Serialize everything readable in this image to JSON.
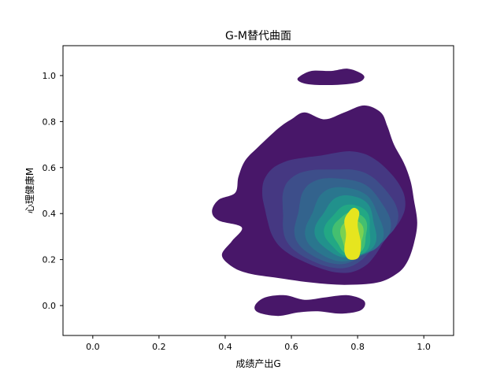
{
  "chart_data": {
    "type": "kde_contour",
    "title": "G-M替代曲面",
    "xlabel": "成绩产出G",
    "ylabel": "心理健康M",
    "xlim": [
      -0.09,
      1.09
    ],
    "ylim": [
      -0.13,
      1.13
    ],
    "xticks": [
      0.0,
      0.2,
      0.4,
      0.6,
      0.8,
      1.0
    ],
    "xtick_labels": [
      "0.0",
      "0.2",
      "0.4",
      "0.6",
      "0.8",
      "1.0"
    ],
    "yticks": [
      0.0,
      0.2,
      0.4,
      0.6,
      0.8,
      1.0
    ],
    "ytick_labels": [
      "0.0",
      "0.2",
      "0.4",
      "0.6",
      "0.8",
      "1.0"
    ],
    "grid": false,
    "colormap": "viridis",
    "level_colors": [
      "#481769",
      "#453882",
      "#3d4e8a",
      "#33638d",
      "#2a768e",
      "#21918c",
      "#22a884",
      "#44bf70",
      "#7ad151",
      "#e6e51f"
    ],
    "density_peak": {
      "x": 0.785,
      "y": 0.3
    },
    "regions": [
      {
        "x_range": [
          0.36,
          0.98
        ],
        "y_range": [
          0.09,
          0.87
        ]
      },
      {
        "x_range": [
          0.61,
          0.82
        ],
        "y_range": [
          0.95,
          1.03
        ]
      },
      {
        "x_range": [
          0.49,
          0.82
        ],
        "y_range": [
          -0.04,
          0.05
        ]
      }
    ]
  }
}
